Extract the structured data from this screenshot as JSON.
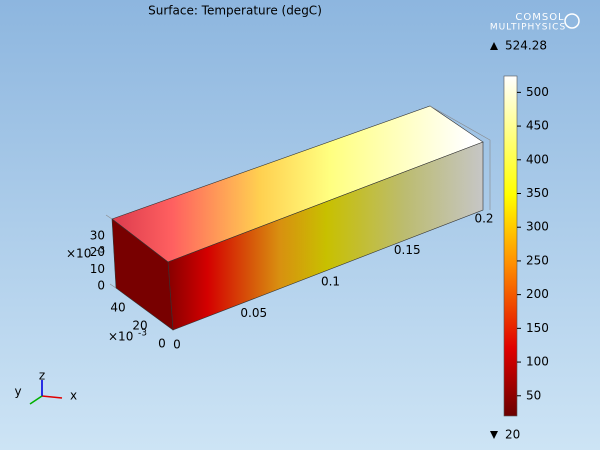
{
  "title": "Surface: Temperature (degC)",
  "logo": {
    "line1": "COMSOL",
    "line2": "MULTIPHYSICS"
  },
  "colorbar": {
    "max": 524.28,
    "min": 20,
    "ticks": [
      50,
      100,
      150,
      200,
      250,
      300,
      350,
      400,
      450,
      500
    ]
  },
  "axes": {
    "x": {
      "ticks": [
        0,
        0.05,
        0.1,
        0.15,
        0.2
      ]
    },
    "y": {
      "ticks": [
        0,
        20,
        40
      ],
      "multiplier": "×10",
      "exponent": "-3"
    },
    "z": {
      "ticks": [
        0,
        10,
        20,
        30
      ],
      "multiplier": "×10",
      "exponent": "-3"
    }
  },
  "triad": {
    "x": "x",
    "y": "y",
    "z": "z"
  }
}
